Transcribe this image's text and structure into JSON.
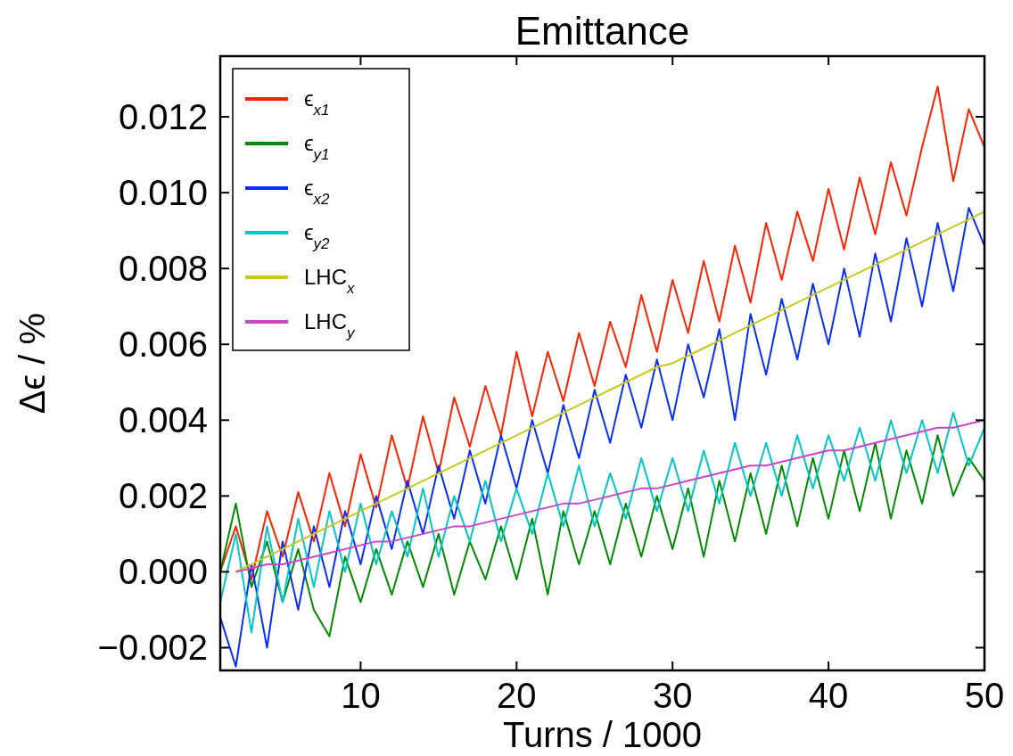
{
  "chart_data": {
    "type": "line",
    "title": "Emittance",
    "xlabel": "Turns / 1000",
    "ylabel": "Δϵ / %",
    "x": [
      1,
      2,
      3,
      4,
      5,
      6,
      7,
      8,
      9,
      10,
      11,
      12,
      13,
      14,
      15,
      16,
      17,
      18,
      19,
      20,
      21,
      22,
      23,
      24,
      25,
      26,
      27,
      28,
      29,
      30,
      31,
      32,
      33,
      34,
      35,
      36,
      37,
      38,
      39,
      40,
      41,
      42,
      43,
      44,
      45,
      46,
      47,
      48,
      49,
      50
    ],
    "xlim": [
      1,
      50
    ],
    "xticks": [
      10,
      20,
      30,
      40,
      50
    ],
    "ylim": [
      -0.0026,
      0.0136
    ],
    "yticks": [
      {
        "value": -0.002,
        "label": "−0.002"
      },
      {
        "value": 0,
        "label": "0.000"
      },
      {
        "value": 0.002,
        "label": "0.002"
      },
      {
        "value": 0.004,
        "label": "0.004"
      },
      {
        "value": 0.006,
        "label": "0.006"
      },
      {
        "value": 0.008,
        "label": "0.008"
      },
      {
        "value": 0.01,
        "label": "0.010"
      },
      {
        "value": 0.012,
        "label": "0.012"
      }
    ],
    "legend": "top left",
    "series": [
      {
        "name": "ϵ$_{x1}$",
        "color": "#ff2200",
        "values": [
          0,
          0.0012,
          -0.0002,
          0.0016,
          0.0004,
          0.0021,
          0.0008,
          0.0026,
          0.0012,
          0.0031,
          0.0017,
          0.0036,
          0.0022,
          0.0041,
          0.0026,
          0.0046,
          0.0033,
          0.0049,
          0.0036,
          0.0058,
          0.0041,
          0.0058,
          0.0045,
          0.0063,
          0.0049,
          0.0066,
          0.0054,
          0.0073,
          0.0058,
          0.0077,
          0.0063,
          0.0082,
          0.0066,
          0.0086,
          0.0071,
          0.0092,
          0.0077,
          0.0095,
          0.0082,
          0.0101,
          0.0085,
          0.0104,
          0.0089,
          0.0108,
          0.0094,
          0.0112,
          0.0128,
          0.0103,
          0.0122,
          0.0112
        ]
      },
      {
        "name": "ϵ$_{y1}$",
        "color": "#008c00",
        "values": [
          0,
          0.0018,
          -0.0004,
          0.0008,
          -0.0008,
          0.0006,
          -0.001,
          -0.0017,
          0.0004,
          -0.0008,
          0.0006,
          -0.0006,
          0.0008,
          -0.0004,
          0.001,
          -0.0006,
          0.0008,
          -0.0002,
          0.0012,
          -0.0002,
          0.0014,
          -0.0006,
          0.0016,
          0.0002,
          0.0016,
          0.0002,
          0.0018,
          0.0004,
          0.002,
          0.0006,
          0.0022,
          0.0004,
          0.0024,
          0.0008,
          0.0026,
          0.001,
          0.0028,
          0.0012,
          0.003,
          0.0014,
          0.0032,
          0.0016,
          0.0034,
          0.0014,
          0.0032,
          0.0018,
          0.0036,
          0.002,
          0.003,
          0.0024
        ]
      },
      {
        "name": "ϵ$_{x2}$",
        "color": "#0a2dff",
        "values": [
          -0.0012,
          -0.0025,
          0.0002,
          -0.002,
          0.0008,
          -0.001,
          0.0012,
          -0.0004,
          0.0016,
          0.0002,
          0.002,
          0.0006,
          0.0024,
          0.001,
          0.0028,
          0.0014,
          0.0032,
          0.0018,
          0.0036,
          0.0022,
          0.004,
          0.0026,
          0.0044,
          0.003,
          0.0048,
          0.0034,
          0.0052,
          0.0038,
          0.0056,
          0.004,
          0.006,
          0.0046,
          0.0064,
          0.004,
          0.0068,
          0.0052,
          0.0072,
          0.0056,
          0.0076,
          0.006,
          0.008,
          0.0062,
          0.0084,
          0.0066,
          0.0088,
          0.007,
          0.0092,
          0.0074,
          0.0096,
          0.0086
        ]
      },
      {
        "name": "ϵ$_{y2}$",
        "color": "#00c8c8",
        "values": [
          -0.0008,
          0.001,
          -0.0016,
          0.0012,
          -0.0008,
          0.0014,
          -0.0004,
          0.0016,
          0,
          0.0018,
          0.0002,
          0.0016,
          0.0004,
          0.0022,
          0.0004,
          0.002,
          0.0008,
          0.0024,
          0.0008,
          0.0022,
          0.001,
          0.0026,
          0.0012,
          0.0028,
          0.0012,
          0.0026,
          0.0014,
          0.003,
          0.0016,
          0.003,
          0.0016,
          0.0032,
          0.0018,
          0.0034,
          0.002,
          0.0034,
          0.002,
          0.0036,
          0.0022,
          0.0036,
          0.0024,
          0.0038,
          0.0024,
          0.004,
          0.0026,
          0.004,
          0.0026,
          0.0042,
          0.0028,
          0.0038
        ]
      },
      {
        "name": "LHC$_{x}$",
        "color": "#c8c81e",
        "values": [
          null,
          0,
          0.0002,
          0.0004,
          0.0006,
          0.0008,
          0.001,
          0.0012,
          0.0014,
          0.0016,
          0.0018,
          0.002,
          0.0022,
          0.0024,
          0.0026,
          0.0028,
          0.003,
          0.0032,
          0.0034,
          0.0036,
          0.0038,
          0.004,
          0.0042,
          0.0044,
          0.0046,
          0.0048,
          0.005,
          0.0052,
          0.0054,
          0.0055,
          0.0057,
          0.0059,
          0.0061,
          0.0063,
          0.0065,
          0.0067,
          0.0069,
          0.0071,
          0.0073,
          0.0075,
          0.0077,
          0.0079,
          0.0081,
          0.0083,
          0.0085,
          0.0087,
          0.0089,
          0.0091,
          0.0093,
          0.0095
        ]
      },
      {
        "name": "LHC$_{y}$",
        "color": "#cc44cc",
        "values": [
          null,
          0,
          0.0001,
          0.0002,
          0.0002,
          0.0003,
          0.0004,
          0.0005,
          0.0006,
          0.0007,
          0.0008,
          0.0008,
          0.0009,
          0.001,
          0.0011,
          0.0012,
          0.0012,
          0.0013,
          0.0014,
          0.0015,
          0.0016,
          0.0017,
          0.0018,
          0.0018,
          0.0019,
          0.002,
          0.0021,
          0.0022,
          0.0022,
          0.0023,
          0.0024,
          0.0025,
          0.0026,
          0.0027,
          0.0028,
          0.0028,
          0.0029,
          0.003,
          0.0031,
          0.0032,
          0.0032,
          0.0033,
          0.0034,
          0.0035,
          0.0036,
          0.0037,
          0.0038,
          0.0038,
          0.0039,
          0.004
        ]
      }
    ]
  }
}
